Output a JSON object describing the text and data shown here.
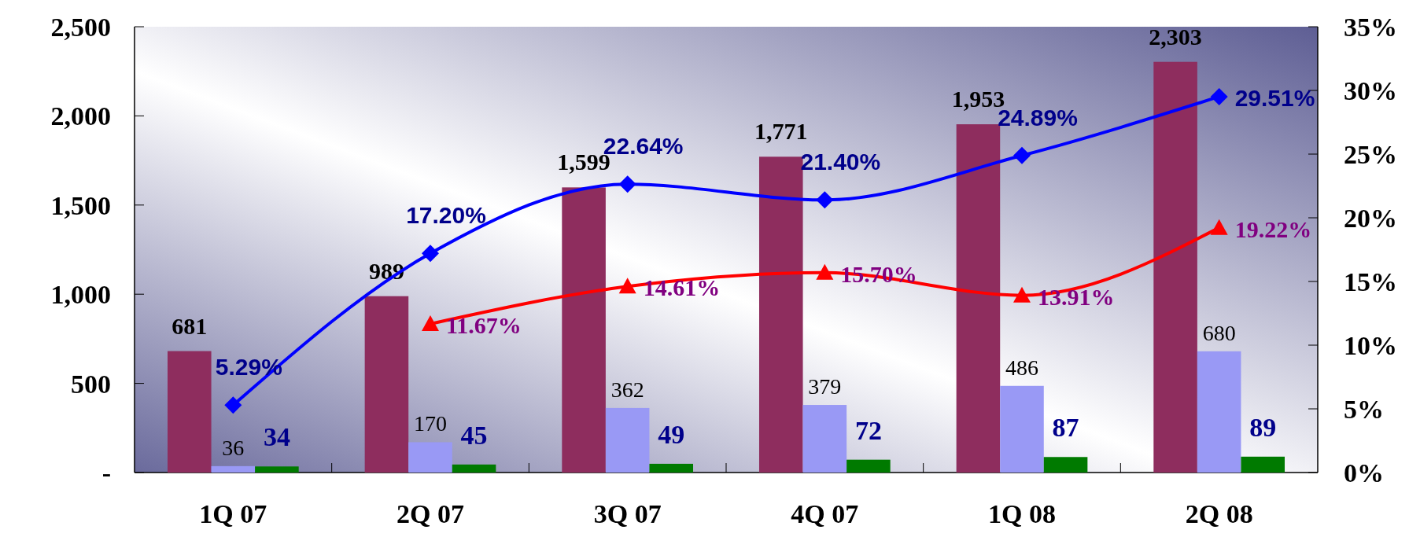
{
  "chart_data": {
    "type": "bar",
    "categories": [
      "1Q 07",
      "2Q 07",
      "3Q 07",
      "4Q 07",
      "1Q 08",
      "2Q 08"
    ],
    "series": [
      {
        "color": "#8e2d5e",
        "values": [
          681,
          989,
          1599,
          1771,
          1953,
          2303
        ],
        "value_labels": [
          "681",
          "989",
          "1,599",
          "1,771",
          "1,953",
          "2,303"
        ]
      },
      {
        "color": "#9999f5",
        "values": [
          36,
          170,
          362,
          379,
          486,
          680
        ],
        "value_labels": [
          "36",
          "170",
          "362",
          "379",
          "486",
          "680"
        ]
      },
      {
        "color": "#007a00",
        "values": [
          34,
          45,
          49,
          72,
          87,
          89
        ],
        "value_labels": [
          "34",
          "45",
          "49",
          "72",
          "87",
          "89"
        ]
      },
      {
        "type": "line",
        "axis": "y2",
        "color": "#0000ff",
        "marker": "diamond",
        "values": [
          5.29,
          17.2,
          22.64,
          21.4,
          24.89,
          29.51
        ],
        "value_labels": [
          "5.29%",
          "17.20%",
          "22.64%",
          "21.40%",
          "24.89%",
          "29.51%"
        ]
      },
      {
        "type": "line",
        "axis": "y2",
        "color": "#ff0000",
        "marker": "triangle",
        "values": [
          null,
          11.67,
          14.61,
          15.7,
          13.91,
          19.22
        ],
        "value_labels": [
          null,
          "11.67%",
          "14.61%",
          "15.70%",
          "13.91%",
          "19.22%"
        ]
      }
    ],
    "ylim": [
      0,
      2500
    ],
    "yticks": [
      {
        "value": 0,
        "label": "-"
      },
      500,
      {
        "value": 1000,
        "label": "1,000"
      },
      {
        "value": 1500,
        "label": "1,500"
      },
      {
        "value": 2000,
        "label": "2,000"
      },
      {
        "value": 2500,
        "label": "2,500"
      }
    ],
    "y2lim": [
      0,
      35
    ],
    "y2ticks": [
      {
        "value": 0,
        "label": "0%"
      },
      {
        "value": 5,
        "label": "5%"
      },
      {
        "value": 10,
        "label": "10%"
      },
      {
        "value": 15,
        "label": "15%"
      },
      {
        "value": 20,
        "label": "20%"
      },
      {
        "value": 25,
        "label": "25%"
      },
      {
        "value": 30,
        "label": "30%"
      },
      {
        "value": 35,
        "label": "35%"
      }
    ],
    "grid": false
  }
}
